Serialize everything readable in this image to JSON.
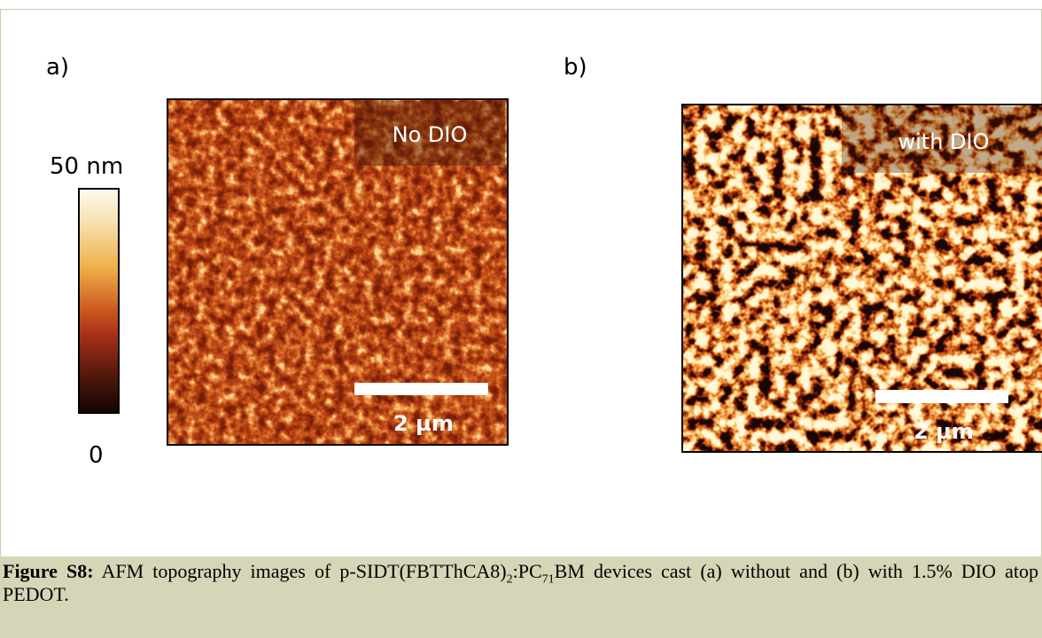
{
  "panels": [
    {
      "label": "a)",
      "overlay": "No DIO",
      "scale_bar": "2 µm"
    },
    {
      "label": "b)",
      "overlay": "with DIO",
      "scale_bar": "2 µm"
    }
  ],
  "colorbar": {
    "max_label": "50 nm",
    "min_label": "0"
  },
  "caption": {
    "label": "Figure S8:",
    "text_1": " AFM topography images of p-SIDT(FBTThCA8)",
    "sub_1": "2",
    "text_2": ":PC",
    "sub_2": "71",
    "text_3": "BM devices cast (a) without and (b) with 1.5% DIO atop PEDOT."
  }
}
